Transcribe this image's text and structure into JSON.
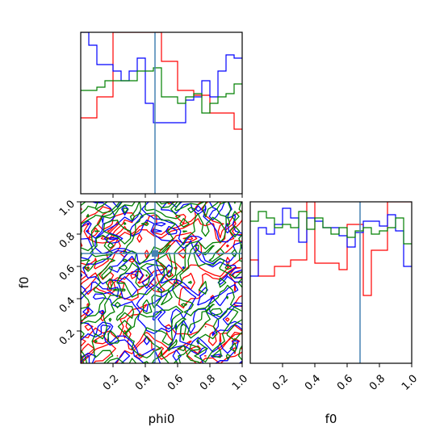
{
  "chart_data": {
    "type": "corner",
    "parameters": [
      "phi0",
      "f0"
    ],
    "colors": {
      "red": "#ff0000",
      "blue": "#0000ff",
      "green": "#008000",
      "truth": "#4682b4"
    },
    "truth": {
      "phi0": 0.46,
      "f0": 0.68
    },
    "panels": [
      {
        "id": "hist-phi0",
        "type": "step-histogram",
        "xlim": [
          0,
          1
        ],
        "xticks": [
          "0.2",
          "0.4",
          "0.6",
          "0.8",
          "1.0"
        ],
        "tick_labels_shown": false,
        "bin_edges": [
          0.0,
          0.05,
          0.1,
          0.15,
          0.2,
          0.25,
          0.3,
          0.35,
          0.4,
          0.45,
          0.5,
          0.55,
          0.6,
          0.65,
          0.7,
          0.75,
          0.8,
          0.85,
          0.9,
          0.95,
          1.0
        ],
        "series": [
          {
            "color": "red",
            "values": [
              0.47,
              0.47,
              0.6,
              0.6,
              1.0,
              1.0,
              1.0,
              1.0,
              1.0,
              1.0,
              0.82,
              0.82,
              0.64,
              0.64,
              0.61,
              0.61,
              0.5,
              0.5,
              0.5,
              0.4
            ]
          },
          {
            "color": "blue",
            "values": [
              1.0,
              0.92,
              0.8,
              0.8,
              0.76,
              0.7,
              0.76,
              0.84,
              0.56,
              0.44,
              0.44,
              0.44,
              0.44,
              0.58,
              0.6,
              0.7,
              0.6,
              0.76,
              0.86,
              0.84
            ]
          },
          {
            "color": "green",
            "values": [
              0.64,
              0.64,
              0.66,
              0.7,
              0.7,
              0.7,
              0.7,
              0.76,
              0.76,
              0.78,
              0.6,
              0.6,
              0.56,
              0.6,
              0.62,
              0.5,
              0.56,
              0.6,
              0.62,
              0.68
            ]
          }
        ]
      },
      {
        "id": "contour-phi0-f0",
        "type": "contour",
        "xlim": [
          0,
          1
        ],
        "ylim": [
          0,
          1
        ],
        "xticks": [
          "0.2",
          "0.4",
          "0.6",
          "0.8",
          "1.0"
        ],
        "yticks": [
          "0.2",
          "0.4",
          "0.6",
          "0.8",
          "1.0"
        ],
        "xlabel": "phi0",
        "ylabel": "f0"
      },
      {
        "id": "hist-f0",
        "type": "step-histogram",
        "xlim": [
          0,
          1
        ],
        "xticks": [
          "0.2",
          "0.4",
          "0.6",
          "0.8",
          "1.0"
        ],
        "xlabel": "f0",
        "bin_edges": [
          0.0,
          0.05,
          0.1,
          0.15,
          0.2,
          0.25,
          0.3,
          0.35,
          0.4,
          0.45,
          0.5,
          0.55,
          0.6,
          0.65,
          0.7,
          0.75,
          0.8,
          0.85,
          0.9,
          0.95,
          1.0
        ],
        "series": [
          {
            "color": "red",
            "values": [
              0.64,
              0.54,
              0.54,
              0.6,
              0.6,
              0.64,
              0.64,
              1.0,
              0.62,
              0.62,
              0.62,
              0.58,
              0.86,
              0.86,
              0.42,
              0.7,
              0.7,
              1.0,
              1.0,
              1.0
            ]
          },
          {
            "color": "blue",
            "values": [
              0.54,
              0.84,
              0.8,
              0.86,
              0.96,
              0.9,
              0.75,
              0.9,
              0.88,
              0.84,
              0.84,
              0.79,
              0.72,
              0.81,
              0.88,
              0.88,
              0.85,
              0.92,
              0.82,
              0.6
            ]
          },
          {
            "color": "green",
            "values": [
              0.88,
              0.94,
              0.9,
              0.84,
              0.86,
              0.84,
              0.94,
              0.83,
              0.9,
              0.84,
              0.8,
              0.84,
              0.78,
              0.82,
              0.84,
              0.8,
              0.82,
              0.84,
              0.9,
              0.74
            ]
          }
        ]
      }
    ]
  }
}
